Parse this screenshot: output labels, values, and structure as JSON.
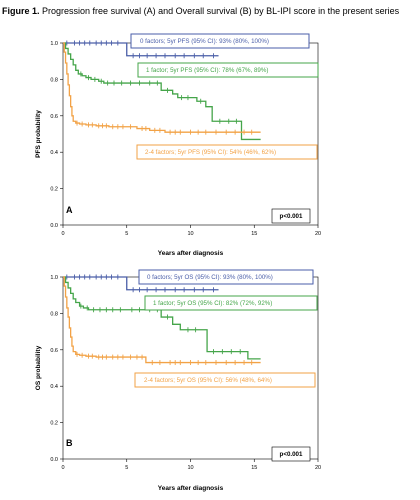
{
  "caption": {
    "label": "Figure 1.",
    "text": "Progression free survival (A) and Overall survival (B) by BL-IPI score in the present series"
  },
  "colors": {
    "zero_factors": "#4a5ea8",
    "one_factor": "#45a54a",
    "two_four_factors": "#f2a246"
  },
  "chart_data": [
    {
      "type": "line",
      "panel_label": "A",
      "xlabel": "Years after diagnosis",
      "ylabel": "PFS probability",
      "xlim": [
        0,
        20
      ],
      "ylim": [
        0,
        1.0
      ],
      "x_ticks": [
        0,
        5,
        10,
        15,
        20
      ],
      "y_ticks": [
        0.0,
        0.2,
        0.4,
        0.6,
        0.8,
        1.0
      ],
      "x_tick_labels": [
        "0",
        "5",
        "10",
        "15",
        "20"
      ],
      "y_tick_labels": [
        "0.0",
        "0.2",
        "0.4",
        "0.6",
        "0.8",
        "1.0"
      ],
      "p_value": "p<0.001",
      "grid": false,
      "series": [
        {
          "name": "0 factors; 5yr PFS (95% CI): 93% (80%, 100%)",
          "color_key": "zero_factors",
          "x": [
            0,
            0.6,
            5.0,
            12.2
          ],
          "y": [
            1.0,
            1.0,
            0.93,
            0.93
          ],
          "censor_x": [
            0.3,
            0.9,
            1.3,
            1.7,
            2.1,
            2.6,
            3.0,
            3.4,
            3.8,
            4.3,
            5.5,
            6.0,
            6.6,
            7.3,
            8.0,
            8.8,
            9.5,
            10.3,
            11.0,
            11.8
          ]
        },
        {
          "name": "1 factor; 5yr PFS (95% CI): 78% (67%, 89%)",
          "color_key": "one_factor",
          "x": [
            0,
            0.2,
            0.4,
            0.6,
            0.8,
            1.0,
            1.2,
            1.5,
            1.8,
            2.2,
            2.8,
            3.2,
            5.0,
            7.7,
            8.6,
            9.0,
            10.5,
            11.2,
            11.7,
            14.0,
            15.5
          ],
          "y": [
            1.0,
            0.97,
            0.94,
            0.91,
            0.88,
            0.85,
            0.83,
            0.82,
            0.81,
            0.8,
            0.79,
            0.78,
            0.78,
            0.74,
            0.72,
            0.7,
            0.68,
            0.65,
            0.57,
            0.47,
            0.47
          ],
          "censor_x": [
            1.4,
            2.0,
            2.5,
            3.0,
            3.5,
            4.0,
            4.6,
            5.3,
            6.0,
            6.8,
            7.4,
            8.2,
            9.3,
            9.8,
            10.8,
            12.3,
            13.0,
            13.6
          ]
        },
        {
          "name": "2-4 factors; 5yr PFS (95% CI): 54% (46%, 62%)",
          "color_key": "two_four_factors",
          "x": [
            0,
            0.1,
            0.2,
            0.3,
            0.4,
            0.5,
            0.6,
            0.7,
            0.8,
            1.0,
            1.3,
            1.8,
            2.6,
            3.6,
            5.0,
            5.8,
            6.8,
            8.0,
            9.5,
            15.5
          ],
          "y": [
            1.0,
            0.95,
            0.89,
            0.83,
            0.77,
            0.71,
            0.65,
            0.6,
            0.57,
            0.56,
            0.555,
            0.55,
            0.545,
            0.54,
            0.54,
            0.53,
            0.52,
            0.51,
            0.51,
            0.51
          ],
          "censor_x": [
            1.1,
            1.5,
            2.0,
            2.3,
            2.8,
            3.1,
            3.4,
            3.9,
            4.3,
            4.7,
            5.3,
            6.2,
            6.5,
            7.2,
            7.6,
            8.4,
            8.8,
            9.2,
            10.0,
            10.6,
            11.2,
            12.0,
            12.8,
            13.5,
            14.2,
            14.8
          ]
        }
      ]
    },
    {
      "type": "line",
      "panel_label": "B",
      "xlabel": "Years after diagnosis",
      "ylabel": "OS probability",
      "xlim": [
        0,
        20
      ],
      "ylim": [
        0,
        1.0
      ],
      "x_ticks": [
        0,
        5,
        10,
        15,
        20
      ],
      "y_ticks": [
        0.0,
        0.2,
        0.4,
        0.6,
        0.8,
        1.0
      ],
      "x_tick_labels": [
        "0",
        "5",
        "10",
        "15",
        "20"
      ],
      "y_tick_labels": [
        "0.0",
        "0.2",
        "0.4",
        "0.6",
        "0.8",
        "1.0"
      ],
      "p_value": "p<0.001",
      "grid": false,
      "series": [
        {
          "name": "0 factors; 5yr OS (95% CI): 93% (80%, 100%)",
          "color_key": "zero_factors",
          "x": [
            0,
            0.6,
            5.0,
            12.2
          ],
          "y": [
            1.0,
            1.0,
            0.93,
            0.93
          ],
          "censor_x": [
            0.3,
            0.9,
            1.3,
            1.7,
            2.1,
            2.6,
            3.0,
            3.4,
            3.8,
            4.3,
            5.5,
            6.0,
            6.6,
            7.3,
            8.0,
            8.8,
            9.5,
            10.3,
            11.0,
            11.8
          ]
        },
        {
          "name": "1 factor; 5yr OS (95% CI): 82% (72%, 92%)",
          "color_key": "one_factor",
          "x": [
            0,
            0.2,
            0.4,
            0.6,
            0.8,
            1.0,
            1.3,
            1.6,
            2.0,
            5.0,
            7.7,
            8.6,
            9.2,
            11.3,
            14.5,
            15.5
          ],
          "y": [
            1.0,
            0.97,
            0.94,
            0.91,
            0.88,
            0.86,
            0.84,
            0.83,
            0.82,
            0.82,
            0.78,
            0.74,
            0.71,
            0.59,
            0.55,
            0.55
          ],
          "censor_x": [
            1.4,
            1.9,
            2.4,
            2.9,
            3.4,
            3.9,
            4.5,
            5.4,
            6.0,
            6.8,
            7.4,
            8.2,
            9.8,
            10.4,
            11.8,
            12.5,
            13.2,
            13.9
          ]
        },
        {
          "name": "2-4 factors; 5yr OS (95% CI): 56% (48%, 64%)",
          "color_key": "two_four_factors",
          "x": [
            0,
            0.1,
            0.2,
            0.3,
            0.4,
            0.5,
            0.6,
            0.7,
            0.8,
            1.0,
            1.3,
            1.8,
            2.6,
            3.6,
            5.0,
            6.5,
            15.5
          ],
          "y": [
            1.0,
            0.95,
            0.89,
            0.83,
            0.78,
            0.72,
            0.67,
            0.62,
            0.59,
            0.575,
            0.57,
            0.565,
            0.56,
            0.56,
            0.56,
            0.53,
            0.53
          ],
          "censor_x": [
            1.1,
            1.5,
            2.0,
            2.3,
            2.8,
            3.1,
            3.4,
            3.9,
            4.3,
            4.7,
            5.3,
            5.8,
            6.2,
            7.0,
            7.6,
            8.4,
            8.8,
            9.2,
            10.0,
            10.6,
            11.2,
            12.0,
            12.8,
            13.5,
            14.2,
            14.8
          ]
        }
      ]
    }
  ]
}
